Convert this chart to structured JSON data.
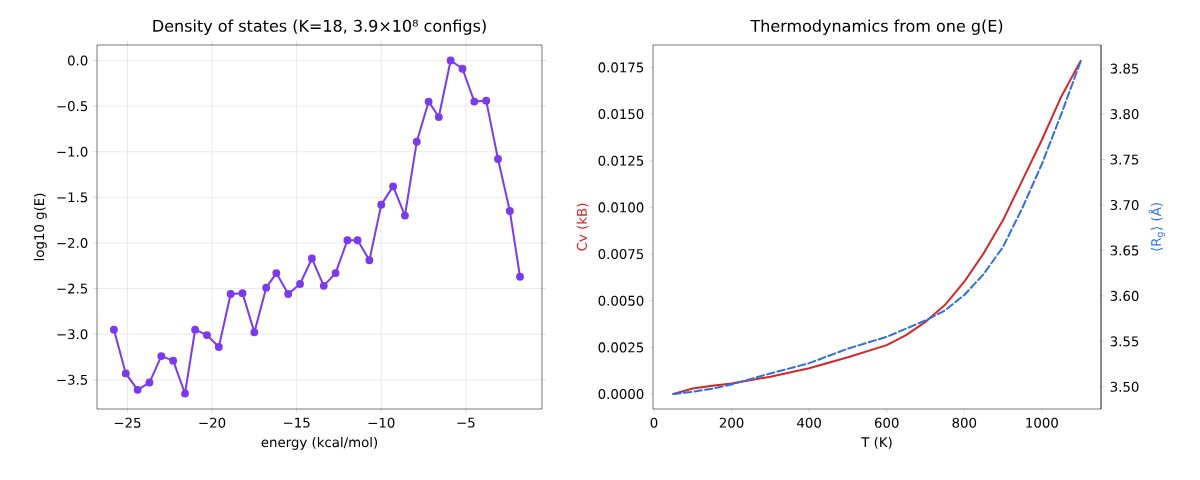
{
  "chart_data": [
    {
      "type": "line",
      "title": "Density of states  (K=18, 3.9×10⁸ configs)",
      "xlabel": "energy (kcal/mol)",
      "ylabel": "log10 g(E)",
      "color": "#7c3aed",
      "marker": "circle",
      "grid": true,
      "x": [
        -25.8,
        -25.1,
        -24.4,
        -23.7,
        -23.0,
        -22.3,
        -21.6,
        -21.0,
        -20.3,
        -19.6,
        -18.9,
        -18.2,
        -17.5,
        -16.8,
        -16.2,
        -15.5,
        -14.8,
        -14.1,
        -13.4,
        -12.7,
        -12.0,
        -11.4,
        -10.7,
        -10.0,
        -9.3,
        -8.6,
        -7.9,
        -7.2,
        -6.6,
        -5.9,
        -5.2,
        -4.5,
        -3.8,
        -3.1,
        -2.4,
        -1.8
      ],
      "values": [
        -2.95,
        -3.43,
        -3.61,
        -3.53,
        -3.24,
        -3.29,
        -3.65,
        -2.95,
        -3.01,
        -3.14,
        -2.56,
        -2.55,
        -2.98,
        -2.49,
        -2.33,
        -2.56,
        -2.45,
        -2.17,
        -2.47,
        -2.33,
        -1.97,
        -1.97,
        -2.19,
        -1.58,
        -1.38,
        -1.7,
        -0.89,
        -0.45,
        -0.62,
        0.0,
        -0.09,
        -0.45,
        -0.44,
        -1.08,
        -1.65,
        -2.37
      ],
      "xlim": [
        -26.8,
        -0.5
      ],
      "ylim": [
        -3.82,
        0.17
      ],
      "xticks": [
        {
          "value": -25,
          "label": "−25"
        },
        {
          "value": -20,
          "label": "−20"
        },
        {
          "value": -15,
          "label": "−15"
        },
        {
          "value": -10,
          "label": "−10"
        },
        {
          "value": -5,
          "label": "−5"
        }
      ],
      "yticks": [
        {
          "value": -3.5,
          "label": "−3.5"
        },
        {
          "value": -3,
          "label": "−3.0"
        },
        {
          "value": -2.5,
          "label": "−2.5"
        },
        {
          "value": -2,
          "label": "−2.0"
        },
        {
          "value": -1.5,
          "label": "−1.5"
        },
        {
          "value": -1,
          "label": "−1.0"
        },
        {
          "value": -0.5,
          "label": "−0.5"
        },
        {
          "value": 0,
          "label": "0.0"
        }
      ]
    },
    {
      "type": "line",
      "title": "Thermodynamics from one g(E)",
      "xlabel": "T (K)",
      "ylabel": "Cv (kB)",
      "y2label": "⟨R$_{g}$⟩ (Å)",
      "x": [
        50,
        100,
        150,
        200,
        300,
        400,
        500,
        600,
        650,
        700,
        750,
        800,
        850,
        900,
        950,
        1000,
        1050,
        1100
      ],
      "series": [
        {
          "color": "#d62728",
          "values": [
            0,
            0.0003,
            0.00045,
            0.00057,
            0.00093,
            0.00138,
            0.00197,
            0.00262,
            0.00316,
            0.00387,
            0.00477,
            0.00602,
            0.00754,
            0.00932,
            0.01146,
            0.01361,
            0.01593,
            0.01785
          ]
        },
        {
          "color": "#2f6fe0",
          "axis": "y2",
          "line_style": "dashed",
          "values": [
            3.492,
            3.4945,
            3.498,
            3.5026,
            3.5147,
            3.526,
            3.542,
            3.555,
            3.564,
            3.573,
            3.584,
            3.601,
            3.624,
            3.654,
            3.697,
            3.745,
            3.8,
            3.858
          ]
        }
      ],
      "xlim": [
        -2.5,
        1152.5
      ],
      "ylim": [
        -0.0008,
        0.0187
      ],
      "y2lim": [
        3.4756,
        3.876
      ],
      "xticks": [
        0,
        200,
        400,
        600,
        800,
        1000
      ],
      "yticks": [
        {
          "value": 0,
          "label": "0.0000"
        },
        {
          "value": 0.0025,
          "label": "0.0025"
        },
        {
          "value": 0.005,
          "label": "0.0050"
        },
        {
          "value": 0.0075,
          "label": "0.0075"
        },
        {
          "value": 0.01,
          "label": "0.0100"
        },
        {
          "value": 0.0125,
          "label": "0.0125"
        },
        {
          "value": 0.015,
          "label": "0.0150"
        },
        {
          "value": 0.0175,
          "label": "0.0175"
        }
      ],
      "y2ticks": [
        {
          "value": 3.5,
          "label": "3.50"
        },
        {
          "value": 3.55,
          "label": "3.55"
        },
        {
          "value": 3.6,
          "label": "3.60"
        },
        {
          "value": 3.65,
          "label": "3.65"
        },
        {
          "value": 3.7,
          "label": "3.70"
        },
        {
          "value": 3.75,
          "label": "3.75"
        },
        {
          "value": 3.8,
          "label": "3.80"
        },
        {
          "value": 3.85,
          "label": "3.85"
        }
      ]
    }
  ]
}
